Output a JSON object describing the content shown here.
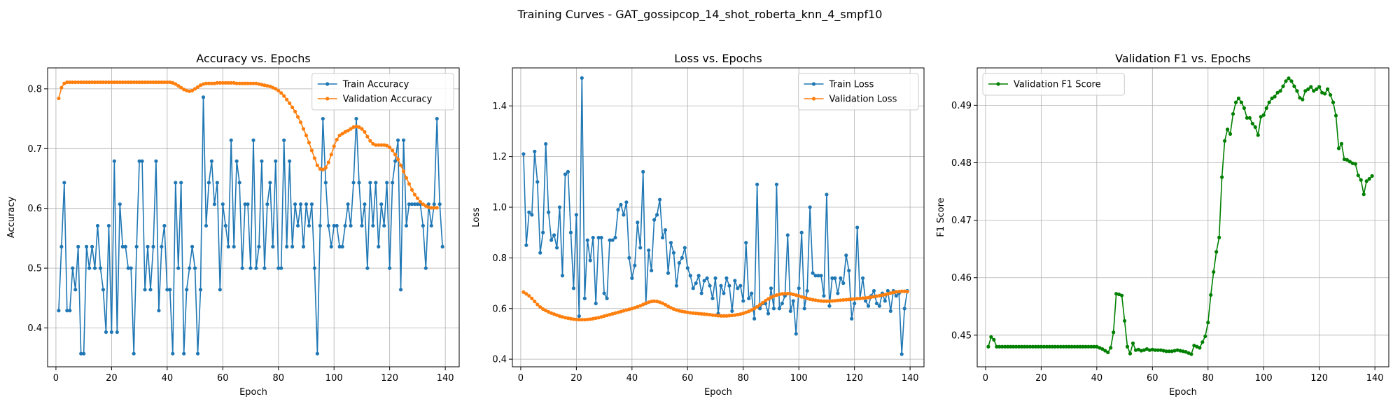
{
  "figure_title": "Training Curves - GAT_gossipcop_14_shot_roberta_knn_4_smpf10",
  "chart_data": [
    {
      "type": "line",
      "title": "Accuracy vs. Epochs",
      "xlabel": "Epoch",
      "ylabel": "Accuracy",
      "xlim": [
        -3,
        145
      ],
      "ylim": [
        0.335,
        0.835
      ],
      "xticks": [
        0,
        20,
        40,
        60,
        80,
        100,
        120,
        140
      ],
      "yticks": [
        0.4,
        0.5,
        0.6,
        0.7,
        0.8
      ],
      "tick_decimals": 1,
      "grid": true,
      "legend": "upper right",
      "series": [
        {
          "name": "Train Accuracy",
          "color": "#1f77b4",
          "x_start": 1,
          "values": [
            0.429,
            0.536,
            0.643,
            0.429,
            0.429,
            0.5,
            0.464,
            0.536,
            0.357,
            0.357,
            0.536,
            0.5,
            0.536,
            0.5,
            0.571,
            0.5,
            0.464,
            0.393,
            0.571,
            0.393,
            0.679,
            0.393,
            0.607,
            0.536,
            0.536,
            0.5,
            0.5,
            0.357,
            0.536,
            0.679,
            0.679,
            0.464,
            0.536,
            0.464,
            0.536,
            0.679,
            0.429,
            0.536,
            0.571,
            0.464,
            0.464,
            0.357,
            0.643,
            0.5,
            0.643,
            0.357,
            0.464,
            0.5,
            0.536,
            0.5,
            0.357,
            0.464,
            0.786,
            0.571,
            0.643,
            0.679,
            0.607,
            0.643,
            0.464,
            0.607,
            0.571,
            0.536,
            0.714,
            0.536,
            0.679,
            0.643,
            0.5,
            0.607,
            0.607,
            0.5,
            0.714,
            0.5,
            0.536,
            0.679,
            0.5,
            0.607,
            0.643,
            0.536,
            0.679,
            0.5,
            0.5,
            0.714,
            0.536,
            0.679,
            0.536,
            0.607,
            0.571,
            0.607,
            0.536,
            0.607,
            0.571,
            0.607,
            0.5,
            0.357,
            0.571,
            0.75,
            0.643,
            0.571,
            0.536,
            0.571,
            0.571,
            0.536,
            0.536,
            0.571,
            0.607,
            0.571,
            0.643,
            0.75,
            0.643,
            0.571,
            0.607,
            0.5,
            0.643,
            0.571,
            0.643,
            0.536,
            0.607,
            0.571,
            0.643,
            0.5,
            0.643,
            0.679,
            0.714,
            0.464,
            0.714,
            0.571,
            0.607,
            0.607,
            0.607,
            0.607,
            0.607,
            0.571,
            0.5,
            0.607,
            0.571,
            0.607,
            0.75,
            0.607,
            0.536
          ]
        },
        {
          "name": "Validation Accuracy",
          "color": "#ff7f0e",
          "x_start": 1,
          "values": [
            0.784,
            0.802,
            0.809,
            0.811,
            0.811,
            0.811,
            0.811,
            0.811,
            0.811,
            0.811,
            0.811,
            0.811,
            0.811,
            0.811,
            0.811,
            0.811,
            0.811,
            0.811,
            0.811,
            0.811,
            0.811,
            0.811,
            0.811,
            0.811,
            0.811,
            0.811,
            0.811,
            0.811,
            0.811,
            0.811,
            0.811,
            0.811,
            0.811,
            0.811,
            0.811,
            0.811,
            0.811,
            0.811,
            0.811,
            0.811,
            0.811,
            0.81,
            0.808,
            0.805,
            0.802,
            0.799,
            0.797,
            0.796,
            0.797,
            0.8,
            0.803,
            0.806,
            0.808,
            0.809,
            0.809,
            0.809,
            0.809,
            0.81,
            0.81,
            0.81,
            0.81,
            0.81,
            0.81,
            0.81,
            0.809,
            0.809,
            0.809,
            0.809,
            0.809,
            0.809,
            0.809,
            0.809,
            0.808,
            0.807,
            0.806,
            0.805,
            0.804,
            0.802,
            0.8,
            0.797,
            0.793,
            0.788,
            0.782,
            0.776,
            0.769,
            0.762,
            0.753,
            0.744,
            0.733,
            0.722,
            0.71,
            0.697,
            0.684,
            0.672,
            0.666,
            0.665,
            0.668,
            0.677,
            0.69,
            0.704,
            0.715,
            0.722,
            0.725,
            0.728,
            0.73,
            0.733,
            0.736,
            0.737,
            0.736,
            0.733,
            0.728,
            0.72,
            0.713,
            0.708,
            0.706,
            0.706,
            0.706,
            0.706,
            0.705,
            0.702,
            0.697,
            0.69,
            0.682,
            0.672,
            0.662,
            0.651,
            0.641,
            0.631,
            0.623,
            0.617,
            0.611,
            0.607,
            0.604,
            0.602,
            0.601,
            0.601,
            0.601
          ]
        }
      ]
    },
    {
      "type": "line",
      "title": "Loss vs. Epochs",
      "xlabel": "Epoch",
      "ylabel": "Loss",
      "xlim": [
        -3,
        145
      ],
      "ylim": [
        0.37,
        1.55
      ],
      "xticks": [
        0,
        20,
        40,
        60,
        80,
        100,
        120,
        140
      ],
      "yticks": [
        0.4,
        0.6,
        0.8,
        1.0,
        1.2,
        1.4
      ],
      "tick_decimals": 1,
      "grid": true,
      "legend": "upper right",
      "series": [
        {
          "name": "Train Loss",
          "color": "#1f77b4",
          "x_start": 1,
          "values": [
            1.21,
            0.85,
            0.98,
            0.97,
            1.22,
            1.1,
            0.82,
            0.9,
            1.25,
            0.98,
            0.87,
            0.89,
            0.84,
            1.0,
            0.73,
            1.13,
            1.14,
            0.9,
            0.68,
            0.97,
            0.57,
            1.51,
            0.64,
            0.87,
            0.79,
            0.88,
            0.62,
            0.88,
            0.88,
            0.66,
            0.64,
            0.87,
            0.87,
            0.88,
            0.99,
            1.01,
            0.97,
            1.02,
            0.8,
            0.72,
            0.77,
            0.94,
            0.84,
            1.14,
            0.62,
            0.83,
            0.75,
            0.95,
            0.97,
            1.03,
            0.88,
            0.91,
            0.74,
            0.86,
            0.82,
            0.69,
            0.78,
            0.8,
            0.84,
            0.76,
            0.73,
            0.68,
            0.7,
            0.73,
            0.66,
            0.71,
            0.72,
            0.69,
            0.64,
            0.72,
            0.58,
            0.69,
            0.66,
            0.72,
            0.69,
            0.59,
            0.71,
            0.68,
            0.69,
            0.63,
            0.86,
            0.64,
            0.66,
            0.56,
            1.09,
            0.6,
            0.62,
            0.62,
            0.58,
            0.68,
            0.6,
            1.09,
            0.6,
            0.62,
            0.65,
            0.89,
            0.59,
            0.63,
            0.5,
            0.68,
            0.9,
            0.6,
            0.67,
            1.0,
            0.74,
            0.73,
            0.73,
            0.73,
            0.65,
            1.05,
            0.61,
            0.72,
            0.72,
            0.66,
            0.72,
            0.7,
            0.81,
            0.75,
            0.56,
            0.62,
            0.92,
            0.64,
            0.72,
            0.63,
            0.61,
            0.65,
            0.67,
            0.62,
            0.61,
            0.66,
            0.63,
            0.67,
            0.59,
            0.67,
            0.65,
            0.66,
            0.42,
            0.6,
            0.67
          ]
        },
        {
          "name": "Validation Loss",
          "color": "#ff7f0e",
          "x_start": 1,
          "values": [
            0.665,
            0.658,
            0.65,
            0.64,
            0.628,
            0.616,
            0.606,
            0.598,
            0.592,
            0.587,
            0.582,
            0.578,
            0.574,
            0.57,
            0.567,
            0.564,
            0.562,
            0.56,
            0.558,
            0.557,
            0.556,
            0.556,
            0.556,
            0.557,
            0.558,
            0.56,
            0.562,
            0.564,
            0.567,
            0.57,
            0.573,
            0.576,
            0.579,
            0.582,
            0.585,
            0.588,
            0.591,
            0.594,
            0.597,
            0.6,
            0.603,
            0.607,
            0.611,
            0.616,
            0.621,
            0.625,
            0.628,
            0.629,
            0.628,
            0.625,
            0.621,
            0.615,
            0.609,
            0.603,
            0.598,
            0.594,
            0.591,
            0.589,
            0.587,
            0.585,
            0.583,
            0.582,
            0.581,
            0.58,
            0.579,
            0.578,
            0.577,
            0.576,
            0.574,
            0.573,
            0.572,
            0.571,
            0.571,
            0.571,
            0.572,
            0.573,
            0.574,
            0.576,
            0.578,
            0.581,
            0.585,
            0.589,
            0.594,
            0.6,
            0.607,
            0.615,
            0.623,
            0.631,
            0.638,
            0.644,
            0.649,
            0.653,
            0.656,
            0.658,
            0.659,
            0.659,
            0.658,
            0.656,
            0.653,
            0.65,
            0.646,
            0.643,
            0.64,
            0.637,
            0.635,
            0.633,
            0.631,
            0.63,
            0.629,
            0.629,
            0.629,
            0.63,
            0.631,
            0.632,
            0.633,
            0.634,
            0.635,
            0.636,
            0.637,
            0.638,
            0.639,
            0.64,
            0.641,
            0.642,
            0.643,
            0.645,
            0.647,
            0.649,
            0.651,
            0.653,
            0.655,
            0.658,
            0.661,
            0.664,
            0.666,
            0.667,
            0.668,
            0.668,
            0.667
          ]
        }
      ]
    },
    {
      "type": "line",
      "title": "Validation F1 vs. Epochs",
      "xlabel": "Epoch",
      "ylabel": "F1 Score",
      "xlim": [
        -3,
        145
      ],
      "ylim": [
        0.4445,
        0.4965
      ],
      "xticks": [
        0,
        20,
        40,
        60,
        80,
        100,
        120,
        140
      ],
      "yticks": [
        0.45,
        0.46,
        0.47,
        0.48,
        0.49
      ],
      "tick_decimals": 2,
      "grid": true,
      "legend": "upper left",
      "series": [
        {
          "name": "Validation F1 Score",
          "color": "#008000",
          "x_start": 1,
          "values": [
            0.448,
            0.4497,
            0.4492,
            0.448,
            0.448,
            0.448,
            0.448,
            0.448,
            0.448,
            0.448,
            0.448,
            0.448,
            0.448,
            0.448,
            0.448,
            0.448,
            0.448,
            0.448,
            0.448,
            0.448,
            0.448,
            0.448,
            0.448,
            0.448,
            0.448,
            0.448,
            0.448,
            0.448,
            0.448,
            0.448,
            0.448,
            0.448,
            0.448,
            0.448,
            0.448,
            0.448,
            0.448,
            0.448,
            0.448,
            0.448,
            0.4478,
            0.4476,
            0.4473,
            0.447,
            0.4478,
            0.4505,
            0.4572,
            0.4571,
            0.4569,
            0.4525,
            0.448,
            0.4468,
            0.4486,
            0.4474,
            0.4475,
            0.4473,
            0.4474,
            0.4476,
            0.4474,
            0.4475,
            0.4474,
            0.4474,
            0.4474,
            0.4473,
            0.4472,
            0.4472,
            0.4472,
            0.4473,
            0.4474,
            0.4473,
            0.4472,
            0.4471,
            0.4469,
            0.4467,
            0.4482,
            0.448,
            0.4478,
            0.4488,
            0.4498,
            0.4522,
            0.457,
            0.461,
            0.4645,
            0.467,
            0.4775,
            0.4838,
            0.4858,
            0.485,
            0.4885,
            0.4905,
            0.4912,
            0.4905,
            0.4895,
            0.4878,
            0.4878,
            0.4868,
            0.4862,
            0.4848,
            0.488,
            0.4883,
            0.4895,
            0.4905,
            0.4912,
            0.4915,
            0.4922,
            0.4925,
            0.4933,
            0.4942,
            0.4947,
            0.4942,
            0.4933,
            0.4925,
            0.4913,
            0.491,
            0.4925,
            0.4928,
            0.4932,
            0.4925,
            0.4928,
            0.4932,
            0.4922,
            0.492,
            0.4928,
            0.4918,
            0.4905,
            0.4882,
            0.4825,
            0.4833,
            0.4806,
            0.4805,
            0.4802,
            0.4799,
            0.4798,
            0.4778,
            0.477,
            0.4745,
            0.4768,
            0.4772,
            0.4777
          ]
        }
      ]
    }
  ]
}
